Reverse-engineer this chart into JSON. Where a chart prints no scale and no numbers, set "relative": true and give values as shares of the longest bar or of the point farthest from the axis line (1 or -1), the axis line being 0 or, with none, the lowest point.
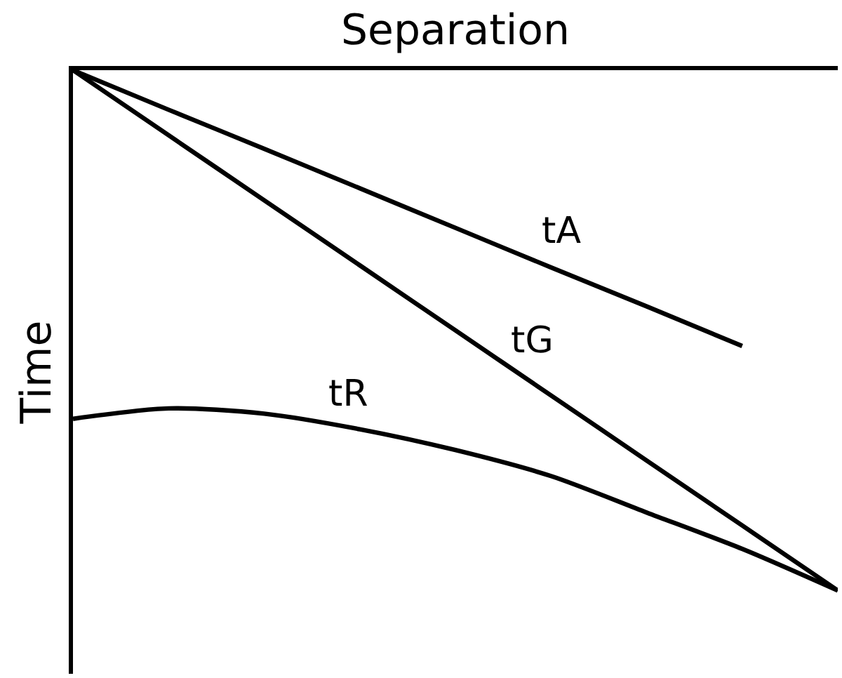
{
  "chart_data": {
    "type": "line",
    "xlabel": "Separation",
    "ylabel": "Time",
    "relative": true,
    "line_style": "solid",
    "categories": [
      null,
      null,
      null,
      null,
      null,
      null,
      null,
      null,
      null
    ],
    "series": [
      {
        "name": "tA",
        "color": "#000000",
        "values": [
          0,
          -0.076,
          -0.151,
          -0.227,
          -0.303,
          -0.379,
          -0.454,
          -0.53,
          null
        ]
      },
      {
        "name": "tG",
        "color": "#000000",
        "values": [
          0,
          -0.125,
          -0.25,
          -0.375,
          -0.5,
          -0.625,
          -0.75,
          -0.875,
          -1
        ]
      },
      {
        "name": "tR",
        "color": "#000000",
        "values": [
          -0.67,
          -0.65,
          -0.66,
          -0.69,
          -0.73,
          -0.78,
          -0.85,
          -0.92,
          -1
        ]
      }
    ]
  }
}
